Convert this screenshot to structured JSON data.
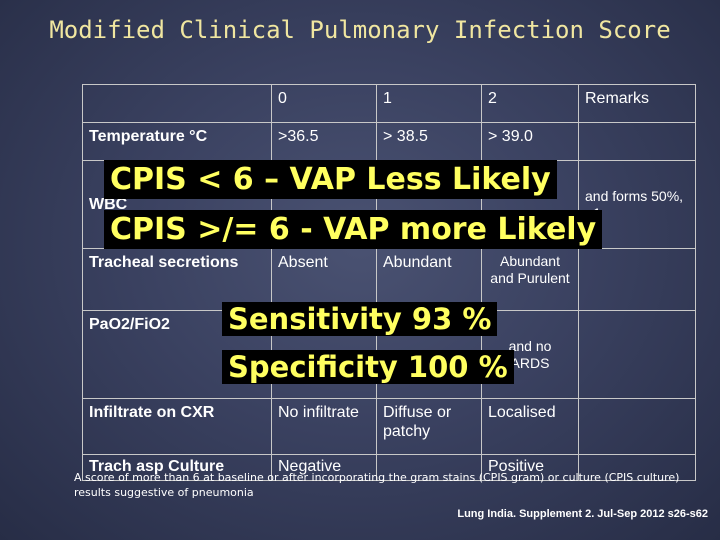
{
  "slide": {
    "title": "Modified Clinical Pulmonary Infection Score",
    "headers": [
      "0",
      "1",
      "2",
      "Remarks"
    ],
    "rows": [
      {
        "label": "Temperature °C",
        "c0": ">36.5",
        "c1": "> 38.5",
        "c2": "> 39.0",
        "remarks": ""
      },
      {
        "label": "WBC",
        "c0": "",
        "c1": "",
        "c2": "",
        "remarks": "and forms 50%, +1"
      },
      {
        "label": "Tracheal secretions",
        "c0": "Absent",
        "c1": "Abundant",
        "c2": "Abundant and Purulent",
        "remarks": ""
      },
      {
        "label": "PaO2/FiO2",
        "c0": "",
        "c1": "",
        "c2": "and no ARDS",
        "remarks": ""
      },
      {
        "label": "Infiltrate on CXR",
        "c0": "No infiltrate",
        "c1": "Diffuse or patchy",
        "c2": "Localised",
        "remarks": ""
      },
      {
        "label": "Trach asp Culture",
        "c0": "Negative",
        "c1": "",
        "c2": "Positive",
        "remarks": ""
      }
    ],
    "cpis_line1": "CPIS < 6 – VAP Less Likely",
    "cpis_line2": "CPIS >/= 6 - VAP more Likely",
    "sensitivity": "Sensitivity  93 %",
    "specificity": "Specificity  100 %",
    "footnote": "A score of more than 6 at baseline or after incorporating the gram stains (CPIS gram) or culture (CPIS culture) results suggestive of pneumonia",
    "citation": "Lung India. Supplement 2. Jul-Sep 2012 s26-s62"
  }
}
